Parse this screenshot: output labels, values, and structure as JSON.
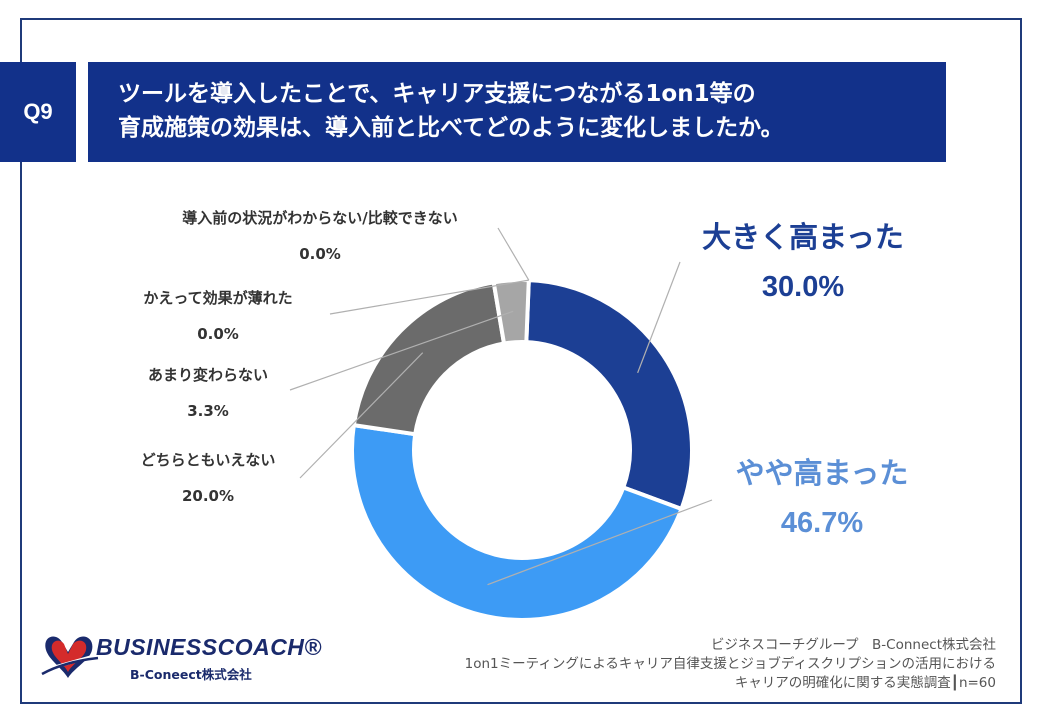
{
  "header": {
    "question_label": "Q9",
    "title_line1": "ツールを導入したことで、キャリア支援につながる1on1等の",
    "title_line2": "育成施策の効果は、導入前と比べてどのように変化しましたか。"
  },
  "chart_data": {
    "type": "pie",
    "donut": true,
    "title": "ツールを導入したことで、キャリア支援につながる1on1等の育成施策の効果は、導入前と比べてどのように変化しましたか。",
    "slices": [
      {
        "label": "大きく高まった",
        "value": 30.0,
        "value_text": "30.0%",
        "color": "#1c3f94"
      },
      {
        "label": "やや高まった",
        "value": 46.7,
        "value_text": "46.7%",
        "color": "#3d9bf5"
      },
      {
        "label": "どちらともいえない",
        "value": 20.0,
        "value_text": "20.0%",
        "color": "#6b6b6b"
      },
      {
        "label": "あまり変わらない",
        "value": 3.3,
        "value_text": "3.3%",
        "color": "#a6a6a6"
      },
      {
        "label": "かえって効果が薄れた",
        "value": 0.0,
        "value_text": "0.0%",
        "color": "#d0d0d0"
      },
      {
        "label": "導入前の状況がわからない/比較できない",
        "value": 0.0,
        "value_text": "0.0%",
        "color": "#e0e0e0"
      }
    ],
    "colors": {
      "label_big_1": "#1c3f94",
      "label_big_2": "#5b8fd6"
    }
  },
  "footer": {
    "line1": "ビジネスコーチグループ　B-Connect株式会社",
    "line2": "1on1ミーティングによるキャリア自律支援とジョブディスクリプションの活用における",
    "line3": "キャリアの明確化に関する実態調査┃n=60"
  },
  "logo": {
    "name": "BUSINESSCOACH",
    "display": "BUSINESSCOACH®",
    "sub": "B-Coneect株式会社"
  }
}
